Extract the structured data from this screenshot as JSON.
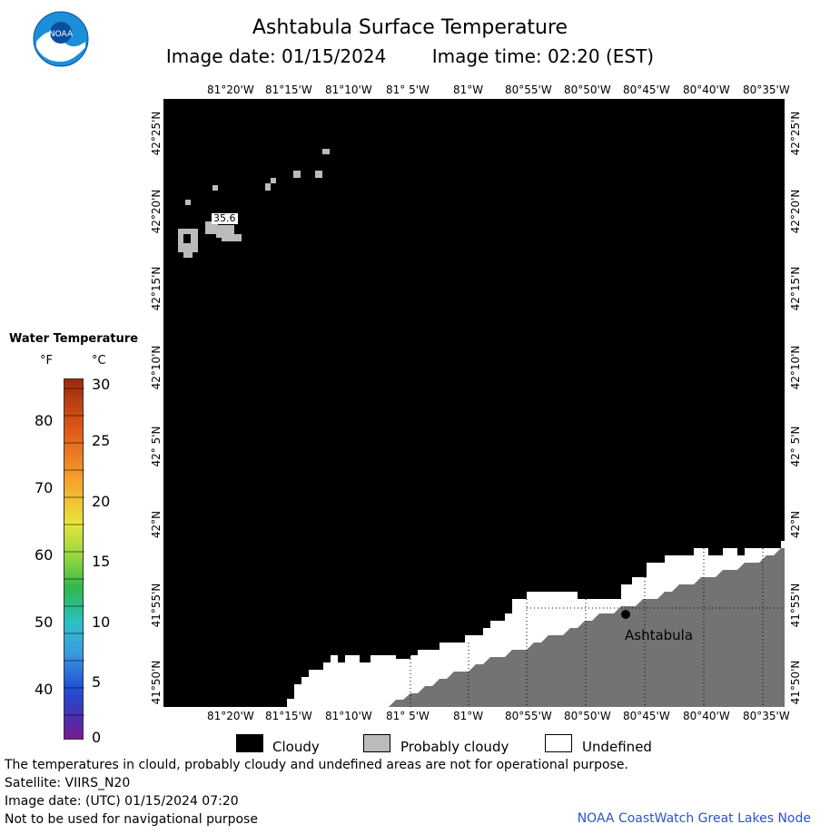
{
  "header": {
    "title": "Ashtabula Surface Temperature",
    "image_date": "Image date: 01/15/2024",
    "image_time": "Image time: 02:20 (EST)"
  },
  "logo": {
    "text": "NOAA"
  },
  "axes": {
    "lon_top": [
      "81°20'W",
      "81°15'W",
      "81°10'W",
      "81° 5'W",
      "81°W",
      "80°55'W",
      "80°50'W",
      "80°45'W",
      "80°40'W",
      "80°35'W"
    ],
    "lon_bottom": [
      "81°20'W",
      "81°15'W",
      "81°10'W",
      "81° 5'W",
      "81°W",
      "80°55'W",
      "80°50'W",
      "80°45'W",
      "80°40'W",
      "80°35'W"
    ],
    "lat_left": [
      "42°25'N",
      "42°20'N",
      "42°15'N",
      "42°10'N",
      "42° 5'N",
      "42°N",
      "41°55'N",
      "41°50'N"
    ],
    "lat_right": [
      "42°25'N",
      "42°20'N",
      "42°15'N",
      "42°10'N",
      "42° 5'N",
      "42°N",
      "41°55'N",
      "41°50'N"
    ]
  },
  "map": {
    "place_label": "Ashtabula",
    "buoy_label": "35.6"
  },
  "legend": {
    "title": "Water Temperature",
    "unit_f": "°F",
    "unit_c": "°C",
    "f_ticks": [
      "80",
      "70",
      "60",
      "50",
      "40"
    ],
    "c_ticks": [
      "30",
      "25",
      "20",
      "15",
      "10",
      "5",
      "0"
    ]
  },
  "cloud_legend": {
    "cloudy": "Cloudy",
    "probably_cloudy": "Probably cloudy",
    "undefined": "Undefined",
    "colors": {
      "cloudy": "#000000",
      "probably_cloudy": "#bbbbbb",
      "undefined": "#ffffff"
    }
  },
  "footer": {
    "disclaimer": "The temperatures in clould, probably cloudy and undefined areas are not for operational purpose.",
    "satellite": "Satellite: VIIRS_N20",
    "utc_date": "Image date: (UTC) 01/15/2024  07:20",
    "nav_warning": "Not to be used for navigational purpose",
    "credit": "NOAA CoastWatch Great Lakes Node"
  },
  "colors": {
    "land": "#737373",
    "credit": "#2a55c8"
  }
}
